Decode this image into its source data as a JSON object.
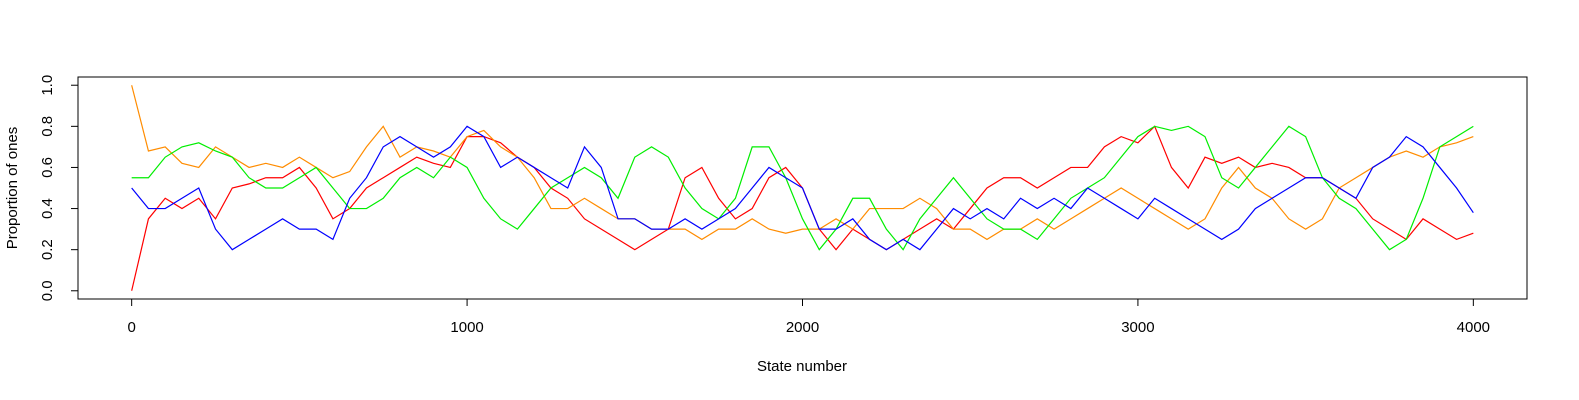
{
  "chart_data": {
    "type": "line",
    "x_label": "State number",
    "y_label": "Proportion of ones",
    "x": [
      0,
      50,
      100,
      150,
      200,
      250,
      300,
      350,
      400,
      450,
      500,
      550,
      600,
      650,
      700,
      750,
      800,
      850,
      900,
      950,
      1000,
      1050,
      1100,
      1150,
      1200,
      1250,
      1300,
      1350,
      1400,
      1450,
      1500,
      1550,
      1600,
      1650,
      1700,
      1750,
      1800,
      1850,
      1900,
      1950,
      2000,
      2050,
      2100,
      2150,
      2200,
      2250,
      2300,
      2350,
      2400,
      2450,
      2500,
      2550,
      2600,
      2650,
      2700,
      2750,
      2800,
      2850,
      2900,
      2950,
      3000,
      3050,
      3100,
      3150,
      3200,
      3250,
      3300,
      3350,
      3400,
      3450,
      3500,
      3550,
      3600,
      3650,
      3700,
      3750,
      3800,
      3850,
      3900,
      3950,
      4000
    ],
    "series": [
      {
        "color": "#ff0000",
        "values": [
          0,
          0.35,
          0.45,
          0.4,
          0.45,
          0.35,
          0.5,
          0.52,
          0.55,
          0.55,
          0.6,
          0.5,
          0.35,
          0.4,
          0.5,
          0.55,
          0.6,
          0.65,
          0.62,
          0.6,
          0.75,
          0.75,
          0.72,
          0.65,
          0.6,
          0.5,
          0.45,
          0.35,
          0.3,
          0.25,
          0.2,
          0.25,
          0.3,
          0.55,
          0.6,
          0.45,
          0.35,
          0.4,
          0.55,
          0.6,
          0.5,
          0.3,
          0.2,
          0.3,
          0.25,
          0.2,
          0.25,
          0.3,
          0.35,
          0.3,
          0.4,
          0.5,
          0.55,
          0.55,
          0.5,
          0.55,
          0.6,
          0.6,
          0.7,
          0.75,
          0.72,
          0.8,
          0.6,
          0.5,
          0.65,
          0.62,
          0.65,
          0.6,
          0.62,
          0.6,
          0.55,
          0.55,
          0.5,
          0.45,
          0.35,
          0.3,
          0.25,
          0.35,
          0.3,
          0.25,
          0.28
        ]
      },
      {
        "color": "#ff8c00",
        "values": [
          1.0,
          0.68,
          0.7,
          0.62,
          0.6,
          0.7,
          0.65,
          0.6,
          0.62,
          0.6,
          0.65,
          0.6,
          0.55,
          0.58,
          0.7,
          0.8,
          0.65,
          0.7,
          0.68,
          0.65,
          0.75,
          0.78,
          0.7,
          0.65,
          0.55,
          0.4,
          0.4,
          0.45,
          0.4,
          0.35,
          0.35,
          0.3,
          0.3,
          0.3,
          0.25,
          0.3,
          0.3,
          0.35,
          0.3,
          0.28,
          0.3,
          0.3,
          0.35,
          0.3,
          0.4,
          0.4,
          0.4,
          0.45,
          0.4,
          0.3,
          0.3,
          0.25,
          0.3,
          0.3,
          0.35,
          0.3,
          0.35,
          0.4,
          0.45,
          0.5,
          0.45,
          0.4,
          0.35,
          0.3,
          0.35,
          0.5,
          0.6,
          0.5,
          0.45,
          0.35,
          0.3,
          0.35,
          0.5,
          0.55,
          0.6,
          0.65,
          0.68,
          0.65,
          0.7,
          0.72,
          0.75
        ]
      },
      {
        "color": "#00ee00",
        "values": [
          0.55,
          0.55,
          0.65,
          0.7,
          0.72,
          0.68,
          0.65,
          0.55,
          0.5,
          0.5,
          0.55,
          0.6,
          0.5,
          0.4,
          0.4,
          0.45,
          0.55,
          0.6,
          0.55,
          0.65,
          0.6,
          0.45,
          0.35,
          0.3,
          0.4,
          0.5,
          0.55,
          0.6,
          0.55,
          0.45,
          0.65,
          0.7,
          0.65,
          0.5,
          0.4,
          0.35,
          0.45,
          0.7,
          0.7,
          0.55,
          0.35,
          0.2,
          0.3,
          0.45,
          0.45,
          0.3,
          0.2,
          0.35,
          0.45,
          0.55,
          0.45,
          0.35,
          0.3,
          0.3,
          0.25,
          0.35,
          0.45,
          0.5,
          0.55,
          0.65,
          0.75,
          0.8,
          0.78,
          0.8,
          0.75,
          0.55,
          0.5,
          0.6,
          0.7,
          0.8,
          0.75,
          0.55,
          0.45,
          0.4,
          0.3,
          0.2,
          0.25,
          0.45,
          0.7,
          0.75,
          0.8
        ]
      },
      {
        "color": "#0000ff",
        "values": [
          0.5,
          0.4,
          0.4,
          0.45,
          0.5,
          0.3,
          0.2,
          0.25,
          0.3,
          0.35,
          0.3,
          0.3,
          0.25,
          0.45,
          0.55,
          0.7,
          0.75,
          0.7,
          0.65,
          0.7,
          0.8,
          0.75,
          0.6,
          0.65,
          0.6,
          0.55,
          0.5,
          0.7,
          0.6,
          0.35,
          0.35,
          0.3,
          0.3,
          0.35,
          0.3,
          0.35,
          0.4,
          0.5,
          0.6,
          0.55,
          0.5,
          0.3,
          0.3,
          0.35,
          0.25,
          0.2,
          0.25,
          0.2,
          0.3,
          0.4,
          0.35,
          0.4,
          0.35,
          0.45,
          0.4,
          0.45,
          0.4,
          0.5,
          0.45,
          0.4,
          0.35,
          0.45,
          0.4,
          0.35,
          0.3,
          0.25,
          0.3,
          0.4,
          0.45,
          0.5,
          0.55,
          0.55,
          0.5,
          0.45,
          0.6,
          0.65,
          0.75,
          0.7,
          0.6,
          0.5,
          0.38
        ]
      }
    ],
    "xlim": [
      -160,
      4160
    ],
    "ylim": [
      -0.04,
      1.04
    ],
    "xticks": [
      0,
      1000,
      2000,
      3000,
      4000
    ],
    "yticks": [
      {
        "value": 0,
        "label": "0.0"
      },
      0.2,
      0.4,
      0.6,
      0.8,
      {
        "value": 1,
        "label": "1.0"
      }
    ],
    "grid": false
  }
}
